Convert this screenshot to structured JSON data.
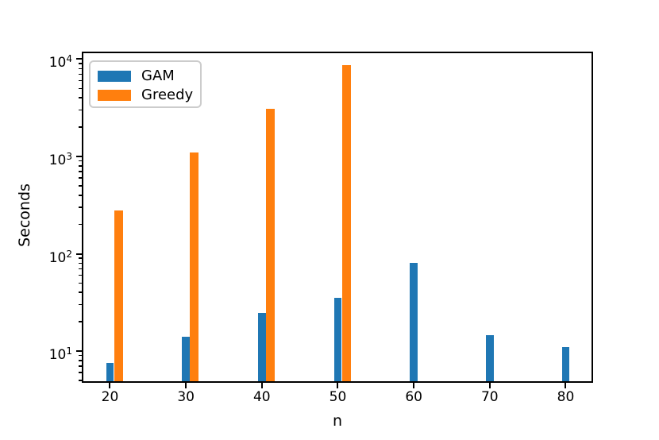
{
  "chart_data": {
    "type": "bar",
    "title": "",
    "xlabel": "n",
    "ylabel": "Seconds",
    "yscale": "log",
    "grid": false,
    "legend_position": "upper-left",
    "categories": [
      20,
      30,
      40,
      50,
      60,
      70,
      80
    ],
    "series": [
      {
        "name": "GAM",
        "color": "#1f77b4",
        "values": [
          7.5,
          14,
          24.5,
          35,
          80,
          14.5,
          11
        ]
      },
      {
        "name": "Greedy",
        "color": "#ff7f0e",
        "values": [
          280,
          1100,
          3100,
          8700,
          null,
          null,
          null
        ]
      }
    ],
    "xlim": [
      16.5,
      83.4
    ],
    "ylim": [
      4.9,
      11500
    ],
    "xticks": [
      20,
      30,
      40,
      50,
      60,
      70,
      80
    ],
    "ytick_base": "10",
    "ytick_exponents": [
      1,
      2,
      3,
      4
    ]
  }
}
